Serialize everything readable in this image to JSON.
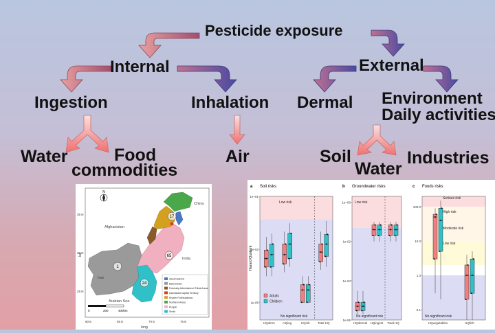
{
  "diagram": {
    "title": "Pesticide exposure",
    "internal": "Internal",
    "external": "External",
    "ingestion": "Ingestion",
    "inhalation": "Inhalation",
    "dermal": "Dermal",
    "environment_line1": "Environment",
    "environment_line2": "Daily activities",
    "water_left": "Water",
    "food_line1": "Food",
    "food_line2": "commodities",
    "air": "Air",
    "soil": "Soil",
    "water_right": "Water",
    "industries": "Industries"
  },
  "map": {
    "north": "N",
    "lat_axis": "lat",
    "long_axis": "long",
    "lat_ticks": [
      "35 N",
      "30 N",
      "25 N"
    ],
    "long_ticks": [
      "60 E",
      "65 E",
      "70 E",
      "75 E"
    ],
    "countries": {
      "afghanistan": "Afghanistan",
      "iran": "Iran",
      "india": "India",
      "china": "China",
      "sea": "Arabian Sea"
    },
    "region_numbers": [
      "17",
      "65",
      "1",
      "24"
    ],
    "scale": [
      "0",
      "200",
      "400km"
    ],
    "legend": [
      {
        "label": "Azad Kashmir",
        "color": "#4a78c8"
      },
      {
        "label": "Baluchistan",
        "color": "#9a9a9a"
      },
      {
        "label": "Federally Administered Tribal Areas",
        "color": "#8a5a2a"
      },
      {
        "label": "Islamabad Capital Territory",
        "color": "#e03a2a"
      },
      {
        "label": "Khyber Pukhtunkhwa",
        "color": "#d4a020"
      },
      {
        "label": "Northern Areas",
        "color": "#4aa84a"
      },
      {
        "label": "Punjab",
        "color": "#f0b0c0"
      },
      {
        "label": "Sindh",
        "color": "#30c0c8"
      }
    ]
  },
  "chart_data": [
    {
      "type": "box",
      "panel": "a",
      "title": "Soil risks",
      "ylabel": "Hazard Quotient",
      "yscale": "log",
      "ylim": [
        1e-06,
        10.0
      ],
      "yticks": [
        "1e+01",
        "1e-02",
        "1e-05"
      ],
      "categories": [
        "HQderm",
        "HQing",
        "HQinh",
        "Total HQ"
      ],
      "series": [
        {
          "name": "Adults",
          "color": "#f08080",
          "boxes": [
            [
              0.0003,
              0.001,
              0.003,
              0.009,
              0.05
            ],
            [
              0.0005,
              0.0015,
              0.005,
              0.02,
              0.1
            ],
            [
              1e-05,
              1e-05,
              5e-05,
              0.0001,
              0.0003
            ],
            [
              0.0007,
              0.002,
              0.007,
              0.02,
              0.1
            ]
          ]
        },
        {
          "name": "Children",
          "color": "#30c0c8",
          "boxes": [
            [
              0.0003,
              0.001,
              0.005,
              0.02,
              0.08
            ],
            [
              0.001,
              0.003,
              0.02,
              0.08,
              0.3
            ],
            [
              1e-05,
              1e-05,
              5e-05,
              0.0001,
              0.0003
            ],
            [
              0.001,
              0.004,
              0.02,
              0.07,
              0.4
            ]
          ]
        }
      ],
      "annotations": [
        "Low risk",
        "No significant risk"
      ]
    },
    {
      "type": "box",
      "panel": "b",
      "title": "Groundwater risks",
      "yscale": "log",
      "yticks": [
        "1e+00",
        "1e-02",
        "1e-04",
        "1e-06"
      ],
      "categories": [
        "HQdermal",
        "HQingest",
        "Total HQ"
      ],
      "series": [
        {
          "name": "Adults",
          "color": "#f08080",
          "boxes": [
            [
              2e-06,
              3e-06,
              5e-06,
              8e-06,
              3e-05
            ],
            [
              0.01,
              0.02,
              0.04,
              0.07,
              0.1
            ],
            [
              0.01,
              0.02,
              0.04,
              0.07,
              0.1
            ]
          ]
        },
        {
          "name": "Children",
          "color": "#30c0c8",
          "boxes": [
            [
              2e-06,
              3e-06,
              5e-06,
              8e-06,
              3e-05
            ],
            [
              0.01,
              0.02,
              0.04,
              0.07,
              0.1
            ],
            [
              0.01,
              0.02,
              0.04,
              0.07,
              0.1
            ]
          ]
        }
      ],
      "annotations": [
        "Low risk",
        "No significant risk"
      ]
    },
    {
      "type": "box",
      "panel": "c",
      "title": "Foods risks",
      "yscale": "log",
      "yticks": [
        "100.0",
        "10.0",
        "1.0",
        "0.1"
      ],
      "categories": [
        "HQvegetables",
        "HQfish"
      ],
      "series": [
        {
          "name": "Adults",
          "color": "#f08080",
          "boxes": [
            [
              0.3,
              3,
              50,
              60,
              90
            ],
            [
              0.05,
              0.2,
              1,
              2,
              4
            ]
          ]
        },
        {
          "name": "Children",
          "color": "#30c0c8",
          "boxes": [
            [
              0.2,
              5,
              40,
              90,
              150
            ],
            [
              0.05,
              0.3,
              1,
              3,
              5
            ]
          ]
        }
      ],
      "annotations": [
        "Serious risk",
        "High risk",
        "Moderate risk",
        "Low risk",
        "No significant risk"
      ]
    }
  ]
}
